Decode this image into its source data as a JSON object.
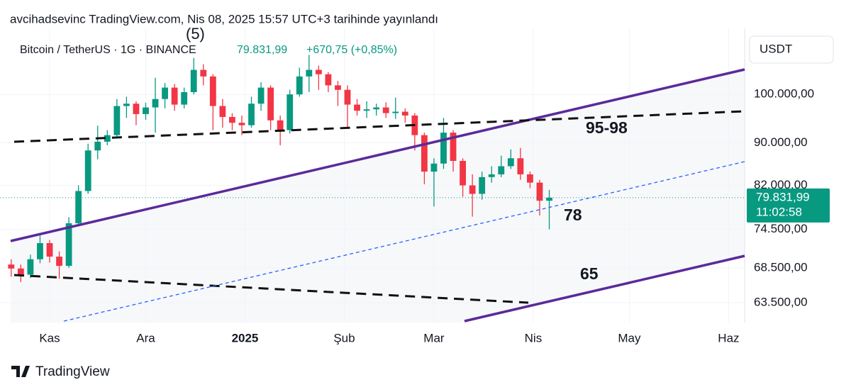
{
  "chart_data": {
    "type": "candlestick",
    "published": "avcihadsevinc TradingView.com, Nis 08, 2025 15:57 UTC+3 tarihinde yayınlandı",
    "title": "Bitcoin / TetherUS · 1G · BINANCE",
    "last_price_label": "79.831,99",
    "change": "+670,75 (+0,85%)",
    "countdown": "11:02:58",
    "currency": "USDT",
    "brand": "TradingView",
    "annotations": [
      "(5)",
      "95-98",
      "78",
      "65"
    ],
    "up_color": "#089981",
    "down_color": "#f23645",
    "log_scale": true,
    "grid": true,
    "x": [
      0,
      3,
      6,
      9,
      12,
      15,
      18,
      21,
      24,
      27,
      30,
      33,
      36,
      39,
      42,
      45,
      48,
      51,
      54,
      57,
      60,
      63,
      66,
      69,
      72,
      75,
      78,
      81,
      84,
      87,
      90,
      93,
      96,
      99,
      102,
      105,
      108,
      111,
      114,
      117,
      120,
      123,
      126,
      129,
      132,
      135,
      138,
      141,
      144,
      147,
      150,
      153,
      156,
      159,
      162,
      165,
      168
    ],
    "open": [
      69000,
      68400,
      67500,
      69800,
      72300,
      70200,
      68800,
      75500,
      81000,
      88500,
      90200,
      91500,
      97500,
      98000,
      95800,
      97200,
      99000,
      101500,
      97800,
      100500,
      105500,
      104000,
      97500,
      95200,
      94000,
      93500,
      98000,
      101500,
      94500,
      92500,
      100000,
      104000,
      105500,
      104500,
      102000,
      101000,
      97800,
      96500,
      96800,
      97200,
      96000,
      96300,
      95500,
      91500,
      84500,
      86000,
      92000,
      86500,
      82000,
      80500,
      83500,
      84000,
      85500,
      87000,
      84000,
      82500,
      79300
    ],
    "high": [
      69800,
      69000,
      70500,
      73500,
      72800,
      71000,
      76500,
      82000,
      89800,
      93400,
      92500,
      99000,
      99500,
      98500,
      98200,
      103700,
      102500,
      102300,
      101500,
      108300,
      106800,
      104500,
      99000,
      96000,
      95500,
      99500,
      102700,
      102000,
      95500,
      101000,
      106000,
      109000,
      106500,
      105000,
      103000,
      102000,
      99000,
      98500,
      98000,
      98300,
      99300,
      97000,
      96000,
      92000,
      87000,
      95000,
      92500,
      87000,
      84000,
      84500,
      85500,
      87500,
      88700,
      89000,
      84500,
      83000,
      81200
    ],
    "low": [
      67200,
      66400,
      67000,
      69200,
      69300,
      66900,
      68500,
      75000,
      80500,
      86800,
      89500,
      91000,
      95000,
      93500,
      94600,
      92000,
      97000,
      96500,
      97000,
      100000,
      102000,
      92500,
      93000,
      92500,
      91500,
      93000,
      96500,
      92500,
      89500,
      91800,
      99500,
      100500,
      101000,
      100500,
      97500,
      93000,
      95500,
      95000,
      95500,
      95000,
      94800,
      94000,
      88500,
      82200,
      78300,
      85000,
      84500,
      80000,
      76600,
      79500,
      82500,
      83500,
      85000,
      83000,
      81500,
      76800,
      74500
    ],
    "close": [
      68400,
      67500,
      69800,
      72300,
      70200,
      68800,
      75500,
      81000,
      88500,
      90200,
      91500,
      97500,
      98000,
      95800,
      97200,
      99000,
      101500,
      97800,
      100500,
      105500,
      104000,
      97500,
      95200,
      94000,
      93500,
      98000,
      101500,
      94500,
      92500,
      100000,
      104000,
      105500,
      104500,
      102000,
      101000,
      97800,
      96500,
      96800,
      97200,
      96000,
      96300,
      95500,
      91500,
      84500,
      86000,
      92000,
      86500,
      82000,
      80500,
      83500,
      84000,
      85500,
      87000,
      84000,
      82500,
      79300,
      79831.99
    ],
    "xlim": [
      -3.5,
      229
    ],
    "xticks": [
      {
        "value": 12,
        "label": "Kas"
      },
      {
        "value": 42,
        "label": "Ara"
      },
      {
        "value": 73,
        "label": "2025"
      },
      {
        "value": 104,
        "label": "Şub"
      },
      {
        "value": 132,
        "label": "Mar"
      },
      {
        "value": 163,
        "label": "Nis"
      },
      {
        "value": 193,
        "label": "May"
      },
      {
        "value": 224,
        "label": "Haz"
      }
    ],
    "ylim": [
      60800,
      115500
    ],
    "yticks": [
      {
        "value": 63500,
        "label": "63.500,00"
      },
      {
        "value": 68500,
        "label": "68.500,00"
      },
      {
        "value": 74500,
        "label": "74.500,00"
      },
      {
        "value": 82000,
        "label": "82.000,00"
      },
      {
        "value": 90000,
        "label": "90.000,00"
      },
      {
        "value": 100000,
        "label": "100.000,00"
      }
    ]
  }
}
